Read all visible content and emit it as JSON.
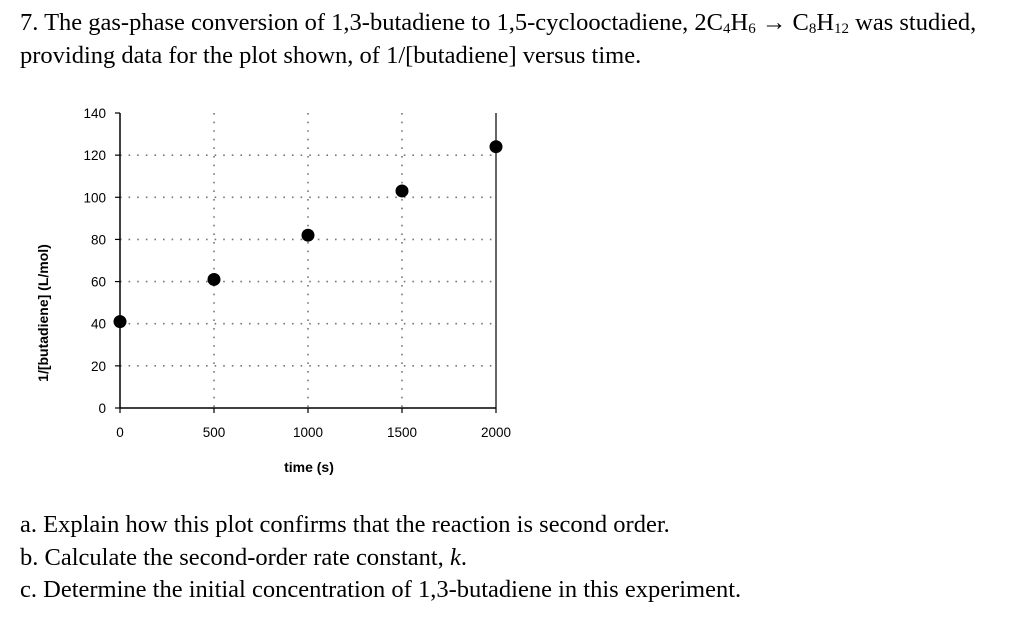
{
  "question": {
    "number": "7.",
    "intro": "The gas-phase conversion of 1,3-butadiene to 1,5-cyclooctadiene, 2C",
    "f1_sub": "4",
    "f1_mid": "H",
    "f1_sub2": "6",
    "arrow": " → C",
    "f2_sub1": "8",
    "f2_mid": "H",
    "f2_sub2": "12",
    "rest": " was studied, providing data for the plot shown, of 1/[butadiene] versus time."
  },
  "chart_data": {
    "type": "scatter",
    "xlabel": "time (s)",
    "ylabel": "1/[butadiene] (L/mol)",
    "xlim": [
      0,
      2000
    ],
    "ylim": [
      0,
      140
    ],
    "xticks": [
      0,
      500,
      1000,
      1500,
      2000
    ],
    "yticks": [
      0,
      20,
      40,
      60,
      80,
      100,
      120,
      140
    ],
    "grid": "dotted",
    "points": [
      {
        "x": 0,
        "y": 41
      },
      {
        "x": 500,
        "y": 61
      },
      {
        "x": 1000,
        "y": 82
      },
      {
        "x": 1500,
        "y": 103
      },
      {
        "x": 2000,
        "y": 124
      }
    ],
    "marker_color": "#000000"
  },
  "parts": [
    {
      "prefix": "a. Explain how this plot confirms that the reaction is second order.",
      "italic": "",
      "suffix": ""
    },
    {
      "prefix": "b. Calculate the second-order rate constant, ",
      "italic": "k",
      "suffix": "."
    },
    {
      "prefix": "c. Determine the initial concentration of 1,3-butadiene in this experiment.",
      "italic": "",
      "suffix": ""
    }
  ]
}
